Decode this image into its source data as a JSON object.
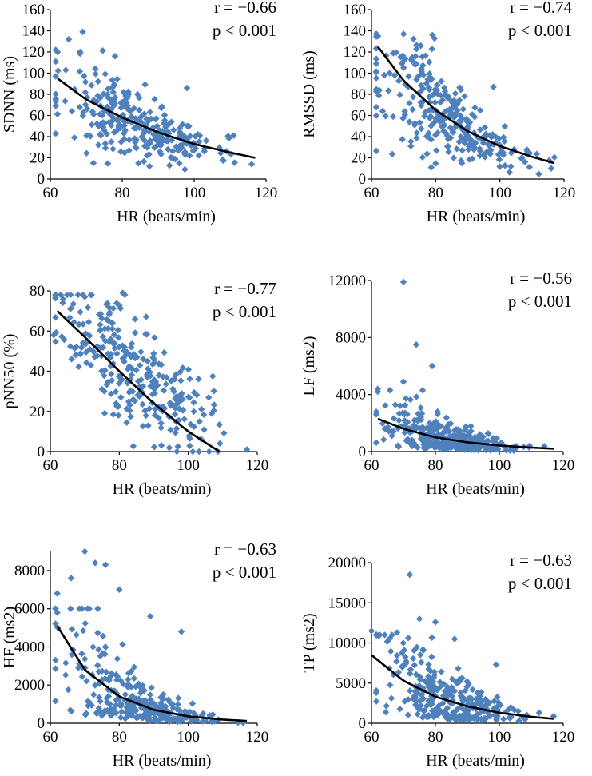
{
  "colors": {
    "point": "#4f81bd",
    "fit": "#000000",
    "axis": "#000000"
  },
  "chart_data": [
    {
      "id": "sdnn",
      "type": "scatter",
      "title": "",
      "xlabel": "HR (beats/min)",
      "ylabel": "SDNN (ms)",
      "xlim": [
        60,
        120
      ],
      "ylim": [
        0,
        160
      ],
      "xticks": [
        60,
        80,
        100,
        120
      ],
      "xtick_labels": [
        "60",
        "80",
        "100",
        "120"
      ],
      "yticks": [
        0,
        20,
        40,
        60,
        80,
        100,
        120,
        140,
        160
      ],
      "ytick_labels": [
        "0",
        "20",
        "40",
        "60",
        "80",
        "100",
        "120",
        "140",
        "160"
      ],
      "r_text": "r = −0.66",
      "p_text": "p < 0.001",
      "fit": {
        "x": [
          62,
          70,
          80,
          90,
          100,
          110,
          117
        ],
        "y": [
          95,
          75,
          58,
          44,
          33,
          25,
          20
        ]
      },
      "points": {
        "seed": 11,
        "n": 290,
        "x_mean": 84,
        "x_sd": 11,
        "y_a": 95,
        "y_b": 20,
        "noise_frac": 0.32,
        "y_max": 140,
        "outliers": [
          [
            62,
            120
          ],
          [
            69,
            139
          ],
          [
            78,
            116
          ],
          [
            98,
            86
          ],
          [
            111,
            41
          ],
          [
            116,
            14
          ]
        ]
      }
    },
    {
      "id": "rmssd",
      "type": "scatter",
      "title": "",
      "xlabel": "HR (beats/min)",
      "ylabel": "RMSSD (ms)",
      "xlim": [
        60,
        120
      ],
      "ylim": [
        0,
        160
      ],
      "xticks": [
        60,
        80,
        100,
        120
      ],
      "xtick_labels": [
        "60",
        "80",
        "100",
        "120"
      ],
      "yticks": [
        0,
        20,
        40,
        60,
        80,
        100,
        120,
        140,
        160
      ],
      "ytick_labels": [
        "0",
        "20",
        "40",
        "60",
        "80",
        "100",
        "120",
        "140",
        "160"
      ],
      "r_text": "r = −0.74",
      "p_text": "p < 0.001",
      "fit": {
        "x": [
          62,
          70,
          80,
          90,
          100,
          110,
          117
        ],
        "y": [
          125,
          93,
          65,
          45,
          31,
          21,
          15
        ]
      },
      "points": {
        "seed": 23,
        "n": 290,
        "x_mean": 84,
        "x_sd": 11,
        "y_a": 125,
        "y_b": 15,
        "noise_frac": 0.35,
        "y_max": 137,
        "outliers": [
          [
            62,
            135
          ],
          [
            70,
            137
          ],
          [
            79,
            136
          ],
          [
            98,
            87
          ],
          [
            116,
            10
          ]
        ]
      }
    },
    {
      "id": "pnn50",
      "type": "scatter",
      "title": "",
      "xlabel": "HR (beats/min)",
      "ylabel": "pNN50 (%)",
      "xlim": [
        60,
        120
      ],
      "ylim": [
        0,
        80
      ],
      "xticks": [
        60,
        80,
        100,
        120
      ],
      "xtick_labels": [
        "60",
        "80",
        "100",
        "120"
      ],
      "yticks": [
        0,
        20,
        40,
        60,
        80
      ],
      "ytick_labels": [
        "0",
        "20",
        "40",
        "60",
        "80"
      ],
      "r_text": "r = −0.77",
      "p_text": "p < 0.001",
      "fit": {
        "x": [
          62,
          70,
          80,
          90,
          100,
          109
        ],
        "y": [
          70,
          57,
          40,
          24,
          10,
          0
        ]
      },
      "points": {
        "seed": 37,
        "n": 290,
        "x_mean": 84,
        "x_sd": 11,
        "y_a": 70,
        "y_b": 0,
        "noise_frac": 0.0,
        "y_max": 78,
        "linear": true,
        "noise_abs": 14,
        "outliers": [
          [
            70,
            77
          ],
          [
            81,
            79
          ],
          [
            61,
            58
          ],
          [
            117,
            1
          ]
        ]
      }
    },
    {
      "id": "lf",
      "type": "scatter",
      "title": "",
      "xlabel": "HR (beats/min)",
      "ylabel": "LF (ms2)",
      "xlim": [
        60,
        120
      ],
      "ylim": [
        0,
        12000
      ],
      "xticks": [
        60,
        80,
        100,
        120
      ],
      "xtick_labels": [
        "60",
        "80",
        "100",
        "120"
      ],
      "yticks": [
        0,
        4000,
        8000,
        12000
      ],
      "ytick_labels": [
        "0",
        "4000",
        "8000",
        "12000"
      ],
      "r_text": "r = −0.56",
      "p_text": "p < 0.001",
      "fit": {
        "x": [
          62,
          70,
          80,
          90,
          100,
          110,
          117
        ],
        "y": [
          2300,
          1600,
          1000,
          650,
          420,
          280,
          200
        ]
      },
      "points": {
        "seed": 53,
        "n": 300,
        "x_mean": 84,
        "x_sd": 11,
        "y_a": 2300,
        "y_b": 200,
        "noise_frac": 0.75,
        "y_max": 4500,
        "outliers": [
          [
            70,
            11900
          ],
          [
            74,
            7500
          ],
          [
            79,
            6000
          ],
          [
            70,
            4900
          ],
          [
            62,
            4400
          ],
          [
            62,
            4200
          ],
          [
            76,
            4300
          ]
        ]
      }
    },
    {
      "id": "hf",
      "type": "scatter",
      "title": "",
      "xlabel": "HR (beats/min)",
      "ylabel": "HF (ms2)",
      "xlim": [
        60,
        120
      ],
      "ylim": [
        0,
        9000
      ],
      "xticks": [
        60,
        80,
        100,
        120
      ],
      "xtick_labels": [
        "60",
        "80",
        "100",
        "120"
      ],
      "yticks": [
        0,
        2000,
        4000,
        6000,
        8000
      ],
      "ytick_labels": [
        "0",
        "2000",
        "4000",
        "6000",
        "8000"
      ],
      "r_text": "r = −0.63",
      "p_text": "p < 0.001",
      "fit": {
        "x": [
          62,
          70,
          80,
          90,
          100,
          110,
          117
        ],
        "y": [
          5100,
          2800,
          1400,
          700,
          360,
          190,
          120
        ]
      },
      "points": {
        "seed": 71,
        "n": 300,
        "x_mean": 84,
        "x_sd": 11,
        "y_a": 5100,
        "y_b": 120,
        "noise_frac": 0.8,
        "y_max": 6000,
        "outliers": [
          [
            70,
            9000
          ],
          [
            73,
            8400
          ],
          [
            76,
            8300
          ],
          [
            66,
            7600
          ],
          [
            62,
            6800
          ],
          [
            80,
            7000
          ],
          [
            89,
            5600
          ],
          [
            98,
            4800
          ],
          [
            62,
            5800
          ]
        ]
      }
    },
    {
      "id": "tp",
      "type": "scatter",
      "title": "",
      "xlabel": "HR (beats/min)",
      "ylabel": "TP (ms2)",
      "xlim": [
        60,
        120
      ],
      "ylim": [
        0,
        20000
      ],
      "xticks": [
        60,
        80,
        100,
        120
      ],
      "xtick_labels": [
        "60",
        "80",
        "100",
        "120"
      ],
      "yticks": [
        0,
        5000,
        10000,
        15000,
        20000
      ],
      "ytick_labels": [
        "0",
        "5000",
        "10000",
        "15000",
        "20000"
      ],
      "r_text": "r = −0.63",
      "p_text": "p < 0.001",
      "fit": {
        "x": [
          60,
          70,
          80,
          90,
          100,
          110,
          117
        ],
        "y": [
          8500,
          5300,
          3300,
          2100,
          1300,
          800,
          550
        ]
      },
      "points": {
        "seed": 89,
        "n": 300,
        "x_mean": 84,
        "x_sd": 11,
        "y_a": 8500,
        "y_b": 550,
        "noise_frac": 0.7,
        "y_max": 11000,
        "outliers": [
          [
            72,
            18500
          ],
          [
            75,
            13000
          ],
          [
            80,
            12600
          ],
          [
            60,
            11500
          ],
          [
            68,
            11300
          ],
          [
            99,
            7300
          ],
          [
            86,
            10500
          ]
        ]
      }
    }
  ]
}
